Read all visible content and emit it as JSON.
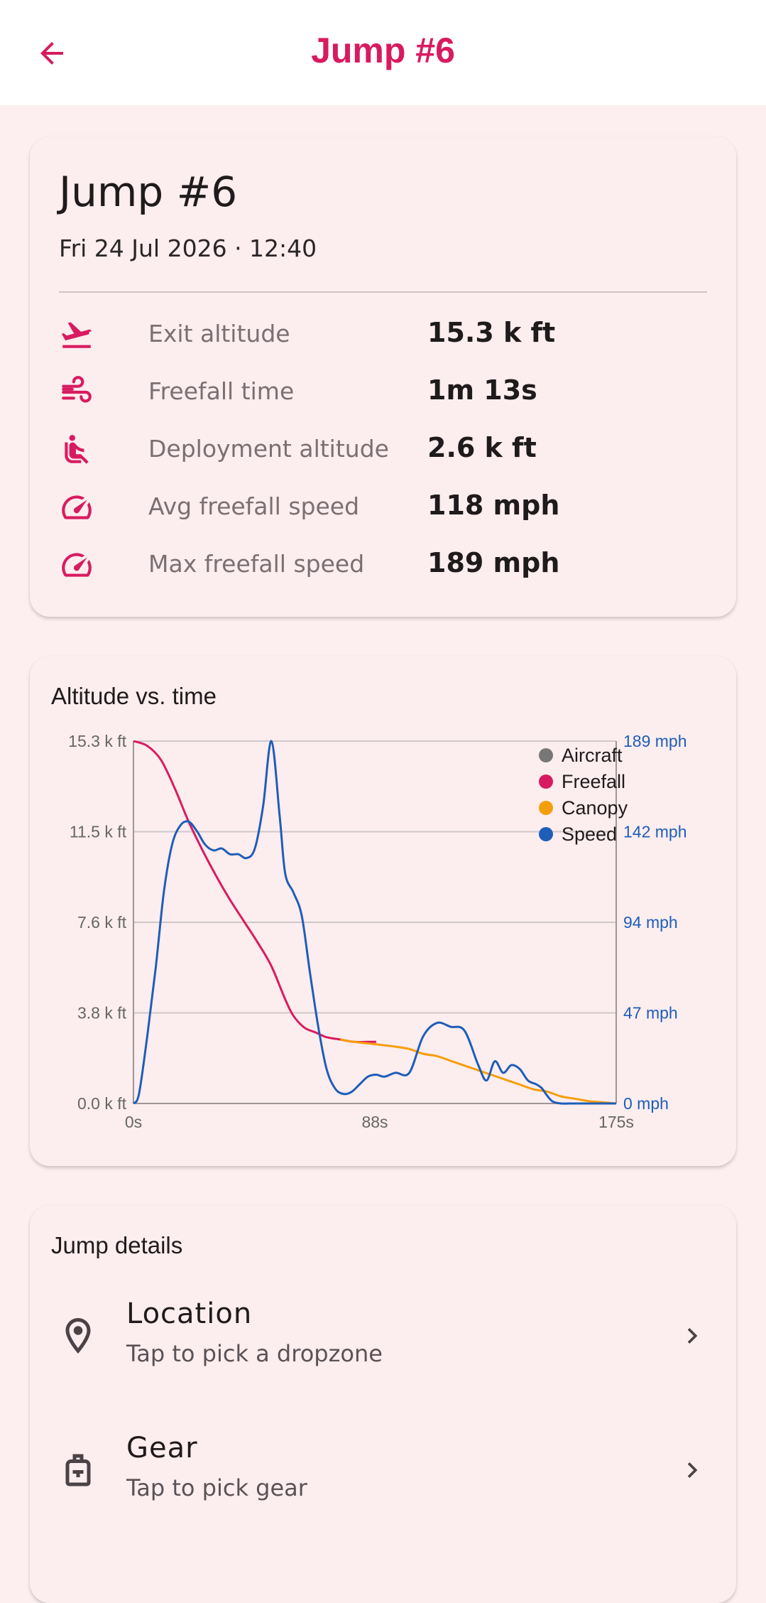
{
  "appbar": {
    "title": "Jump #6"
  },
  "summary": {
    "title": "Jump #6",
    "date": "Fri 24 Jul 2026 · 12:40",
    "stats": [
      {
        "icon": "plane-takeoff-icon",
        "label": "Exit altitude",
        "value": "15.3 k ft"
      },
      {
        "icon": "wind-icon",
        "label": "Freefall time",
        "value": "1m 13s"
      },
      {
        "icon": "seat-icon",
        "label": "Deployment altitude",
        "value": "2.6 k ft"
      },
      {
        "icon": "speedometer-icon",
        "label": "Avg freefall speed",
        "value": "118 mph"
      },
      {
        "icon": "speedometer-icon",
        "label": "Max freefall speed",
        "value": "189 mph"
      }
    ]
  },
  "chart_card": {
    "title": "Altitude vs. time"
  },
  "chart_data": {
    "type": "line",
    "title": "Altitude vs. time",
    "x_ticks": [
      "0s",
      "88s",
      "175s"
    ],
    "y_left_ticks": [
      "0.0 k ft",
      "3.8 k ft",
      "7.6 k ft",
      "11.5 k ft",
      "15.3 k ft"
    ],
    "y_right_ticks": [
      "0 mph",
      "47 mph",
      "94 mph",
      "142 mph",
      "189 mph"
    ],
    "xlim": [
      0,
      175
    ],
    "ylim_left": [
      0,
      15.3
    ],
    "ylim_right": [
      0,
      189
    ],
    "legend": [
      "Aircraft",
      "Freefall",
      "Canopy",
      "Speed"
    ],
    "legend_position": "top-right",
    "grid": true,
    "colors": {
      "Aircraft": "#777777",
      "Freefall": "#d81b60",
      "Canopy": "#f59e0b",
      "Speed": "#1e5eb8"
    },
    "series": [
      {
        "name": "Freefall",
        "axis": "left",
        "x": [
          0,
          5,
          10,
          15,
          20,
          25,
          30,
          35,
          40,
          45,
          50,
          55,
          58,
          62,
          66,
          70,
          75,
          80,
          85,
          88
        ],
        "y": [
          15.3,
          15.1,
          14.5,
          13.3,
          11.9,
          10.7,
          9.6,
          8.6,
          7.7,
          6.8,
          5.8,
          4.4,
          3.7,
          3.2,
          3.0,
          2.8,
          2.7,
          2.6,
          2.6,
          2.6
        ]
      },
      {
        "name": "Canopy",
        "axis": "left",
        "x": [
          75,
          80,
          88,
          95,
          100,
          105,
          110,
          115,
          120,
          125,
          130,
          135,
          140,
          145,
          150,
          155,
          160,
          165,
          170,
          175
        ],
        "y": [
          2.7,
          2.6,
          2.5,
          2.4,
          2.3,
          2.1,
          2.0,
          1.8,
          1.6,
          1.4,
          1.2,
          1.0,
          0.8,
          0.6,
          0.5,
          0.3,
          0.2,
          0.1,
          0.05,
          0.0
        ]
      },
      {
        "name": "Speed",
        "axis": "right",
        "x": [
          0,
          2,
          5,
          8,
          11,
          14,
          17,
          20,
          23,
          26,
          29,
          32,
          35,
          38,
          41,
          44,
          47,
          50,
          53,
          55,
          58,
          61,
          64,
          67,
          70,
          73,
          76,
          79,
          82,
          85,
          88,
          91,
          95,
          100,
          105,
          110,
          115,
          120,
          125,
          128,
          131,
          134,
          137,
          140,
          143,
          146,
          148,
          150,
          152,
          155,
          158,
          160,
          163,
          166,
          170,
          175
        ],
        "y": [
          0,
          5,
          35,
          70,
          110,
          135,
          145,
          147,
          142,
          135,
          132,
          133,
          130,
          130,
          128,
          133,
          155,
          189,
          150,
          120,
          110,
          98,
          68,
          40,
          18,
          8,
          5,
          6,
          10,
          14,
          15,
          14,
          16,
          16,
          35,
          42,
          40,
          38,
          20,
          12,
          22,
          16,
          20,
          18,
          12,
          10,
          8,
          4,
          1,
          0,
          0,
          0,
          0,
          0,
          0,
          0
        ]
      }
    ]
  },
  "details": {
    "title": "Jump details",
    "items": [
      {
        "icon": "location-pin-icon",
        "title": "Location",
        "subtitle": "Tap to pick a dropzone"
      },
      {
        "icon": "gear-bag-icon",
        "title": "Gear",
        "subtitle": "Tap to pick gear"
      }
    ]
  }
}
